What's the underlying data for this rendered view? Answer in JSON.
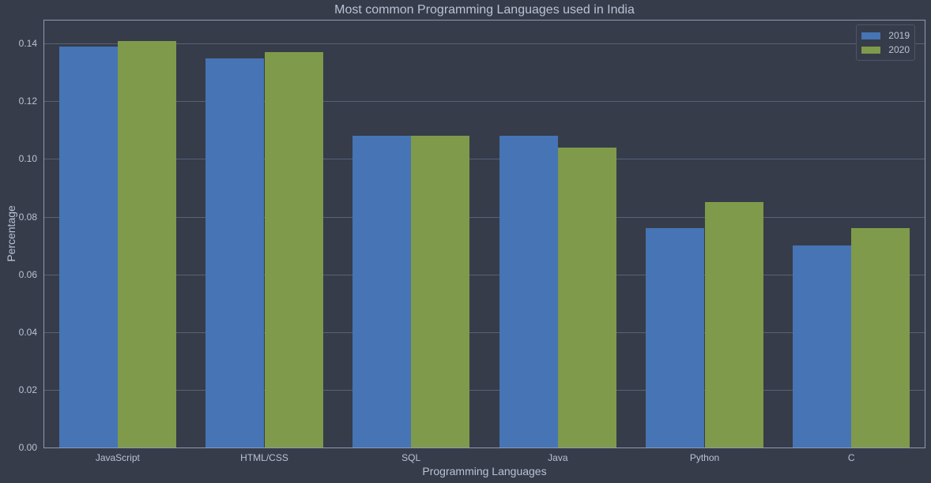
{
  "chart_data": {
    "type": "bar",
    "title": "Most common Programming Languages used in India",
    "xlabel": "Programming Languages",
    "ylabel": "Percentage",
    "categories": [
      "JavaScript",
      "HTML/CSS",
      "SQL",
      "Java",
      "Python",
      "C"
    ],
    "series": [
      {
        "name": "2019",
        "color": "#4674b4",
        "values": [
          0.139,
          0.135,
          0.108,
          0.108,
          0.076,
          0.07
        ]
      },
      {
        "name": "2020",
        "color": "#7f9a4a",
        "values": [
          0.141,
          0.137,
          0.108,
          0.104,
          0.085,
          0.076
        ]
      }
    ],
    "ylim": [
      0,
      0.148
    ],
    "yticks": [
      "0.00",
      "0.02",
      "0.04",
      "0.06",
      "0.08",
      "0.10",
      "0.12",
      "0.14"
    ],
    "grid": true,
    "legend_position": "upper right"
  }
}
